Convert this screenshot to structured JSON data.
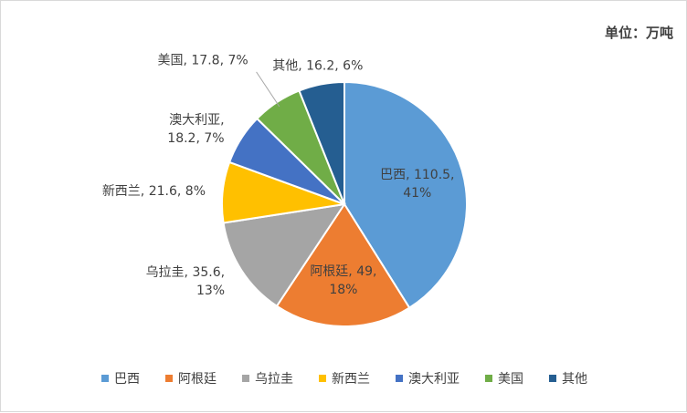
{
  "unit_label": "单位：万吨",
  "chart_data": {
    "type": "pie",
    "title": "",
    "unit": "单位：万吨",
    "slices": [
      {
        "name": "巴西",
        "value": 110.5,
        "percent": "41%",
        "color": "#5B9BD5"
      },
      {
        "name": "阿根廷",
        "value": 49,
        "percent": "18%",
        "color": "#ED7D31"
      },
      {
        "name": "乌拉圭",
        "value": 35.6,
        "percent": "13%",
        "color": "#A5A5A5"
      },
      {
        "name": "新西兰",
        "value": 21.6,
        "percent": "8%",
        "color": "#FFC000"
      },
      {
        "name": "澳大利亚",
        "value": 18.2,
        "percent": "7%",
        "color": "#4472C4"
      },
      {
        "name": "美国",
        "value": 17.8,
        "percent": "7%",
        "color": "#70AD47"
      },
      {
        "name": "其他",
        "value": 16.2,
        "percent": "6%",
        "color": "#255E91"
      }
    ],
    "data_labels": [
      [
        "巴西, 110.5,",
        "41%"
      ],
      [
        "阿根廷, 49,",
        "18%"
      ],
      [
        "乌拉圭, 35.6,",
        "13%"
      ],
      [
        "新西兰, 21.6, 8%"
      ],
      [
        "澳大利亚,",
        "18.2, 7%"
      ],
      [
        "美国, 17.8, 7%"
      ],
      [
        "其他, 16.2, 6%"
      ]
    ],
    "legend_position": "bottom"
  }
}
